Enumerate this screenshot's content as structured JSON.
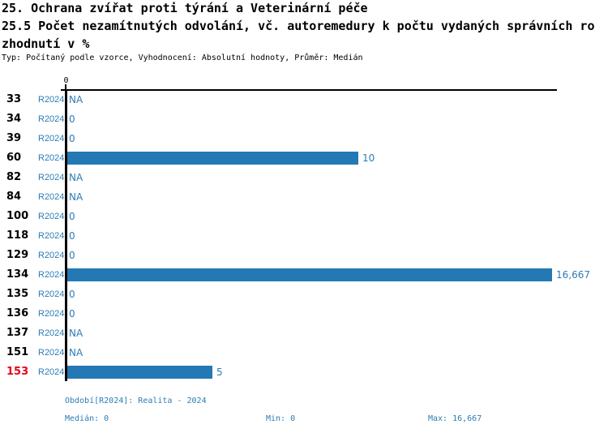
{
  "header": {
    "title": "25. Ochrana zvířat proti týrání a Veterinární péče",
    "subtitle_lines": [
      "25.5 Počet nezamítnutých odvolání, vč. autoremedury k počtu vydaných správních ro",
      "zhodnutí v %"
    ],
    "meta": "Typ: Počítaný podle vzorce, Vyhodnocení: Absolutní hodnoty, Průměr: Medián"
  },
  "chart_data": {
    "type": "bar",
    "orientation": "horizontal",
    "title": "25.5 Počet nezamítnutých odvolání, vč. autoremedury k počtu vydaných správních rozhodnutí v %",
    "categories": [
      "33",
      "34",
      "39",
      "60",
      "82",
      "84",
      "100",
      "118",
      "129",
      "134",
      "135",
      "136",
      "137",
      "151",
      "153"
    ],
    "series": [
      {
        "name": "R2024",
        "values": [
          null,
          0,
          0,
          10,
          null,
          null,
          0,
          0,
          0,
          16.667,
          0,
          0,
          null,
          null,
          5
        ]
      }
    ],
    "value_labels": [
      "NA",
      "0",
      "0",
      "10",
      "NA",
      "NA",
      "0",
      "0",
      "0",
      "16,667",
      "0",
      "0",
      "NA",
      "NA",
      "5"
    ],
    "highlighted_categories": [
      "153"
    ],
    "xlim": [
      0,
      16.667
    ],
    "x_axis_tick_labels": [
      "0"
    ],
    "grid": false,
    "legend_position": "none"
  },
  "footer": {
    "period_note": "Období[R2024]: Realita - 2024",
    "median": "Medián: 0",
    "min": "Min: 0",
    "max": "Max: 16,667"
  },
  "colors": {
    "bar_blue": "#2478b4",
    "text_blue": "#2e7cb4",
    "highlight_red": "#e60019",
    "axis_black": "#000000"
  }
}
